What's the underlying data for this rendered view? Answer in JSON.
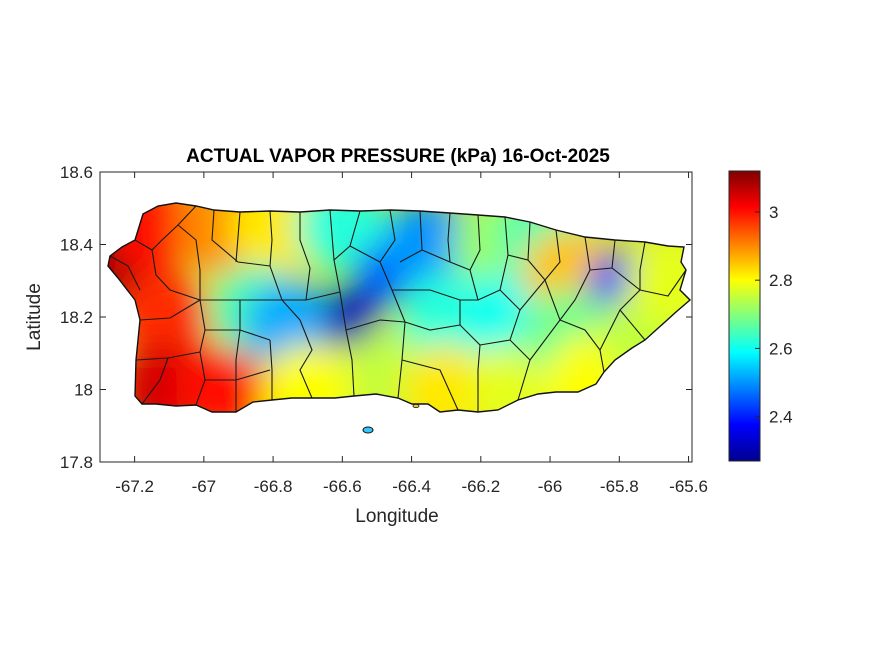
{
  "title": "ACTUAL VAPOR PRESSURE (kPa) 16-Oct-2025",
  "xlabel": "Longitude",
  "ylabel": "Latitude",
  "x_ticks": [
    "-67.2",
    "-67",
    "-66.8",
    "-66.6",
    "-66.4",
    "-66.2",
    "-66",
    "-65.8",
    "-65.6"
  ],
  "y_ticks": [
    "18.6",
    "18.4",
    "18.2",
    "18",
    "17.8"
  ],
  "colorbar_ticks": [
    "3",
    "2.8",
    "2.6",
    "2.4"
  ],
  "chart_data": {
    "type": "heatmap",
    "title": "ACTUAL VAPOR PRESSURE (kPa) 16-Oct-2025",
    "xlabel": "Longitude",
    "ylabel": "Latitude",
    "xlim": [
      -67.3,
      -65.59
    ],
    "ylim": [
      17.8,
      18.6
    ],
    "colormap": "jet",
    "clim": [
      2.27,
      3.12
    ],
    "x_tick_values": [
      -67.2,
      -67,
      -66.8,
      -66.6,
      -66.4,
      -66.2,
      -66,
      -65.8,
      -65.6
    ],
    "y_tick_values": [
      18.6,
      18.4,
      18.2,
      18,
      17.8
    ],
    "colorbar_tick_values": [
      3,
      2.8,
      2.6,
      2.4
    ],
    "grid": false,
    "field_samples": [
      {
        "lon": -67.25,
        "lat": 18.36,
        "value": 3.1
      },
      {
        "lon": -67.15,
        "lat": 18.45,
        "value": 3.0
      },
      {
        "lon": -67.12,
        "lat": 18.2,
        "value": 2.98
      },
      {
        "lon": -67.12,
        "lat": 18.0,
        "value": 3.05
      },
      {
        "lon": -66.95,
        "lat": 18.0,
        "value": 3.0
      },
      {
        "lon": -66.95,
        "lat": 18.45,
        "value": 2.9
      },
      {
        "lon": -66.8,
        "lat": 18.45,
        "value": 2.82
      },
      {
        "lon": -66.85,
        "lat": 18.22,
        "value": 2.65
      },
      {
        "lon": -66.75,
        "lat": 18.18,
        "value": 2.52
      },
      {
        "lon": -66.7,
        "lat": 18.0,
        "value": 2.8
      },
      {
        "lon": -66.6,
        "lat": 18.45,
        "value": 2.62
      },
      {
        "lon": -66.57,
        "lat": 18.2,
        "value": 2.3
      },
      {
        "lon": -66.48,
        "lat": 18.32,
        "value": 2.45
      },
      {
        "lon": -66.45,
        "lat": 18.05,
        "value": 2.75
      },
      {
        "lon": -66.35,
        "lat": 18.4,
        "value": 2.5
      },
      {
        "lon": -66.3,
        "lat": 18.2,
        "value": 2.62
      },
      {
        "lon": -66.3,
        "lat": 18.0,
        "value": 2.82
      },
      {
        "lon": -66.15,
        "lat": 18.4,
        "value": 2.72
      },
      {
        "lon": -66.12,
        "lat": 18.2,
        "value": 2.6
      },
      {
        "lon": -66.1,
        "lat": 18.0,
        "value": 2.78
      },
      {
        "lon": -66.02,
        "lat": 18.42,
        "value": 2.65
      },
      {
        "lon": -65.95,
        "lat": 18.32,
        "value": 2.85
      },
      {
        "lon": -65.95,
        "lat": 18.15,
        "value": 2.68
      },
      {
        "lon": -65.88,
        "lat": 18.03,
        "value": 2.8
      },
      {
        "lon": -65.8,
        "lat": 18.3,
        "value": 2.4
      },
      {
        "lon": -65.72,
        "lat": 18.15,
        "value": 2.75
      },
      {
        "lon": -65.65,
        "lat": 18.3,
        "value": 2.78
      }
    ]
  }
}
